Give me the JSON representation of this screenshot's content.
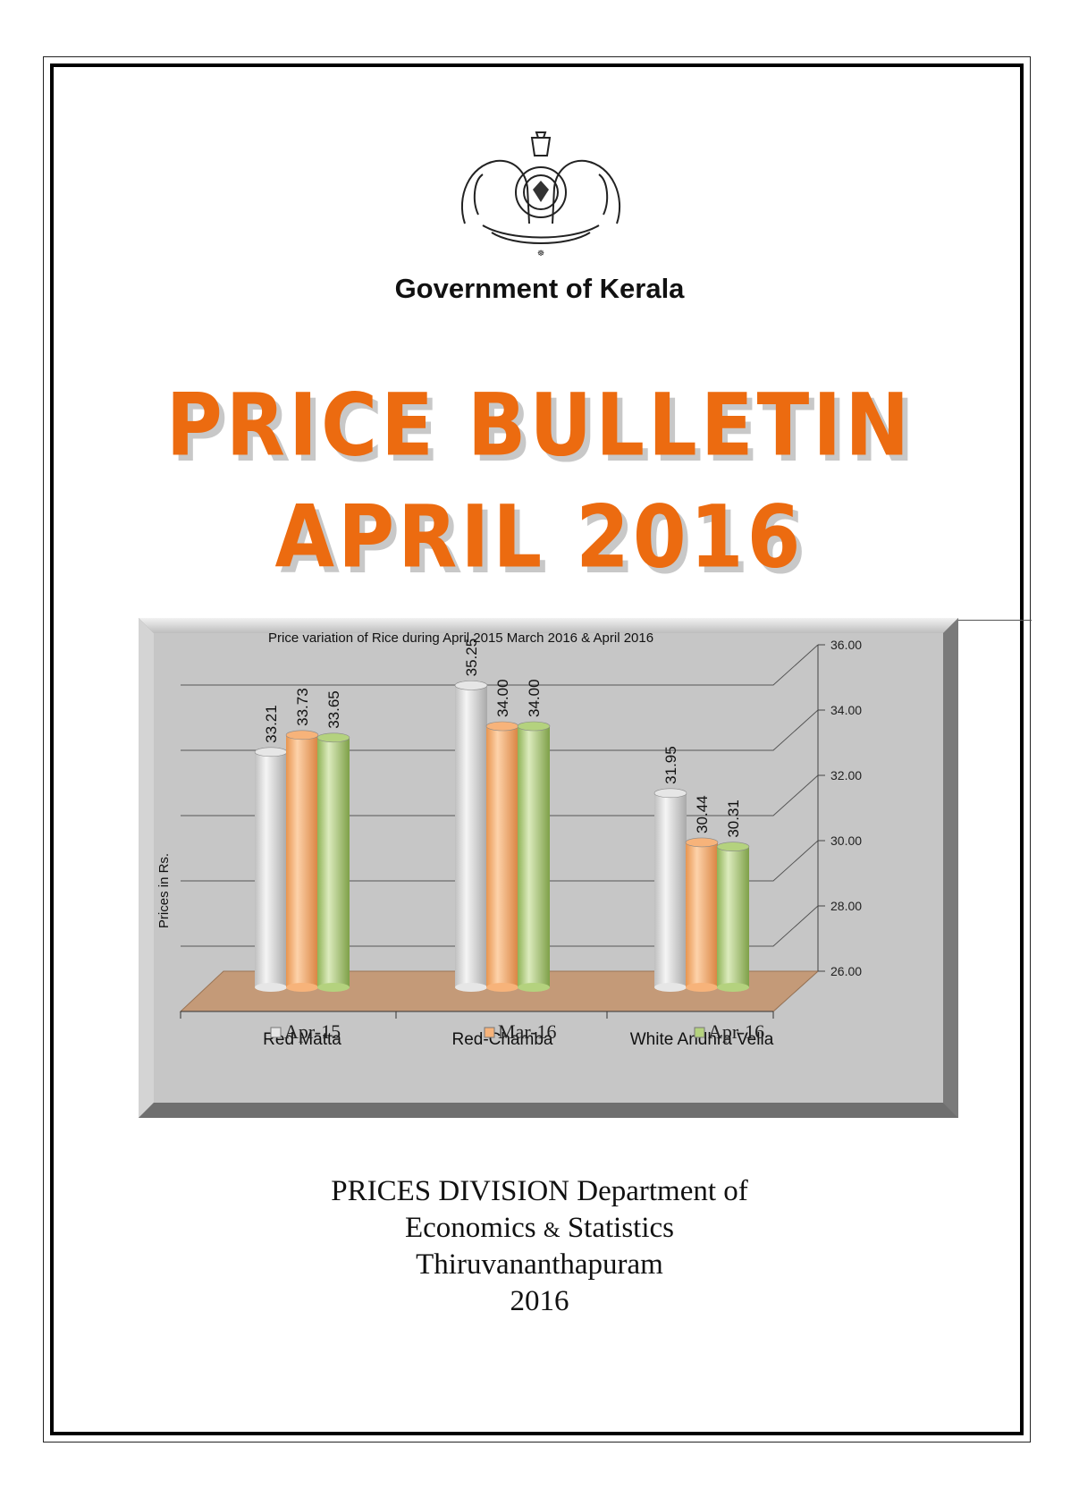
{
  "header": {
    "government": "Government of Kerala",
    "emblem_icon": "kerala-state-emblem-icon"
  },
  "title": {
    "line1": "PRICE BULLETIN",
    "line2": "APRIL 2016",
    "color": "#ec6b10"
  },
  "chart_data": {
    "type": "bar",
    "title": "Price variation of Rice during April 2015 March 2016 & April 2016",
    "ylabel": "Prices in Rs.",
    "xlabel": "",
    "categories": [
      "Red Matta",
      "Red-Chamba",
      "White Andhra Vella"
    ],
    "series": [
      {
        "name": "Apr-15",
        "values": [
          33.21,
          35.25,
          31.95
        ],
        "color": "#e6e6e6"
      },
      {
        "name": "Mar-16",
        "values": [
          33.73,
          34.0,
          30.44
        ],
        "color": "#f7b37a"
      },
      {
        "name": "Apr-16",
        "values": [
          33.65,
          34.0,
          30.31
        ],
        "color": "#b4d27e"
      }
    ],
    "value_labels": [
      [
        "33.21",
        "35.25",
        "31.95"
      ],
      [
        "33.73",
        "34.00",
        "30.44"
      ],
      [
        "33.65",
        "34.00",
        "30.31"
      ]
    ],
    "ylim": [
      26,
      36
    ],
    "yticks": [
      "26.00",
      "28.00",
      "30.00",
      "32.00",
      "34.00",
      "36.00"
    ],
    "y_axis_side": "right",
    "grid": true,
    "legend": "bottom"
  },
  "footer": {
    "line1": "PRICES  DIVISION Department of",
    "line2a": "Economics",
    "line2amp": "&",
    "line2b": "Statistics",
    "line3": "Thiruvananthapuram",
    "line4": "2016"
  }
}
